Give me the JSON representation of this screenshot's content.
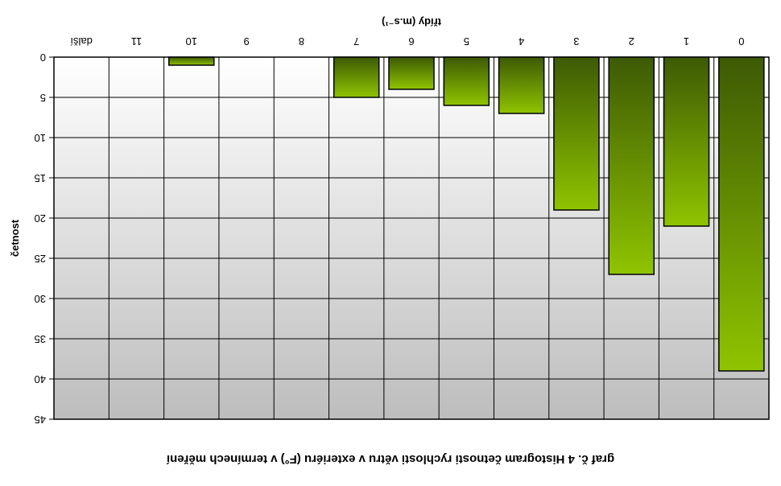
{
  "chart_data": {
    "type": "bar",
    "title": "graf č. 4 Histogram četnosti rychlosti větru v exteriéru (F°) v termínech měření",
    "xlabel": "třídy (m.s⁻¹)",
    "ylabel": "četnost",
    "categories": [
      "0",
      "1",
      "2",
      "3",
      "4",
      "5",
      "6",
      "7",
      "8",
      "9",
      "10",
      "11",
      "další"
    ],
    "values": [
      39,
      21,
      27,
      19,
      7,
      6,
      4,
      5,
      0,
      0,
      1,
      0,
      0
    ],
    "ylim": [
      0,
      45
    ],
    "yticks": [
      "0",
      "5",
      "10",
      "15",
      "20",
      "25",
      "30",
      "35",
      "40",
      "45"
    ],
    "grid": true,
    "legend": "none",
    "colors": {
      "bar_top": "#8fc400",
      "bar_bottom": "#3d5a04",
      "plot_bg_top": "#bdbdbd",
      "plot_bg_bottom": "#ffffff"
    }
  }
}
